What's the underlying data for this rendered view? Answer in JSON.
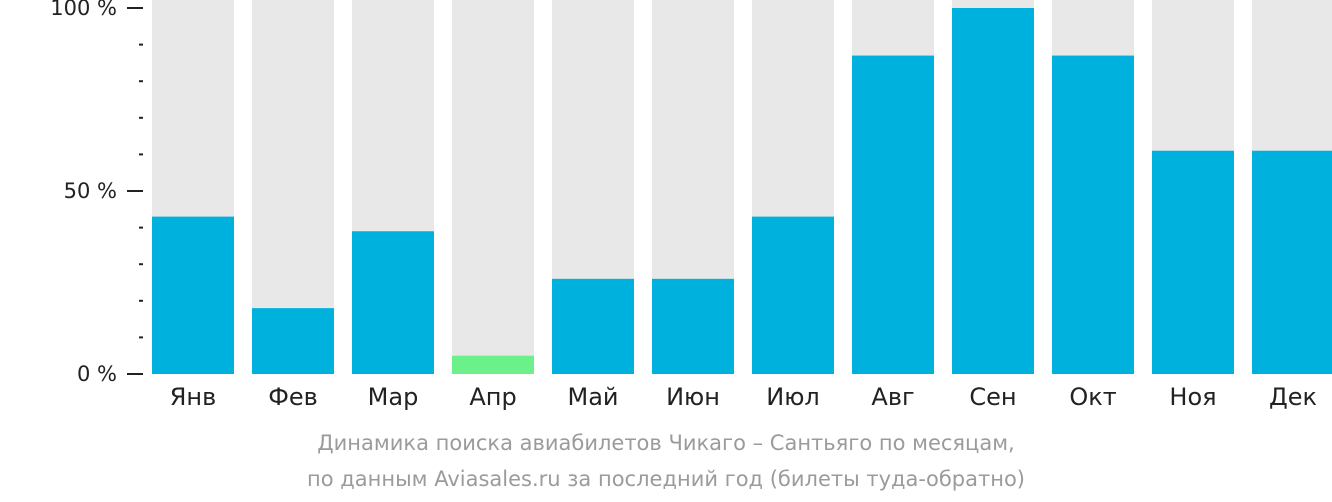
{
  "chart_data": {
    "type": "bar",
    "categories": [
      "Янв",
      "Фев",
      "Мар",
      "Апр",
      "Май",
      "Июн",
      "Июл",
      "Авг",
      "Сен",
      "Окт",
      "Ноя",
      "Дек"
    ],
    "values": [
      43,
      18,
      39,
      5,
      26,
      26,
      43,
      87,
      100,
      87,
      61,
      61
    ],
    "highlight_index": 3,
    "ylim": [
      0,
      100
    ],
    "yticks": [
      {
        "value": 0,
        "label": "0 %"
      },
      {
        "value": 50,
        "label": "50 %"
      },
      {
        "value": 100,
        "label": "100 %"
      }
    ],
    "yminor_step": 10,
    "grid": false,
    "legend": "none",
    "colors": {
      "bar": "#00b0dd",
      "highlight": "#6cf08a",
      "background_bar": "#e8e8e8",
      "axis": "#222222",
      "caption": "#9b9b9b"
    }
  },
  "caption": {
    "line1": "Динамика поиска авиабилетов Чикаго – Сантьяго по месяцам,",
    "line2": "по данным Aviasales.ru за последний год (билеты туда-обратно)"
  }
}
